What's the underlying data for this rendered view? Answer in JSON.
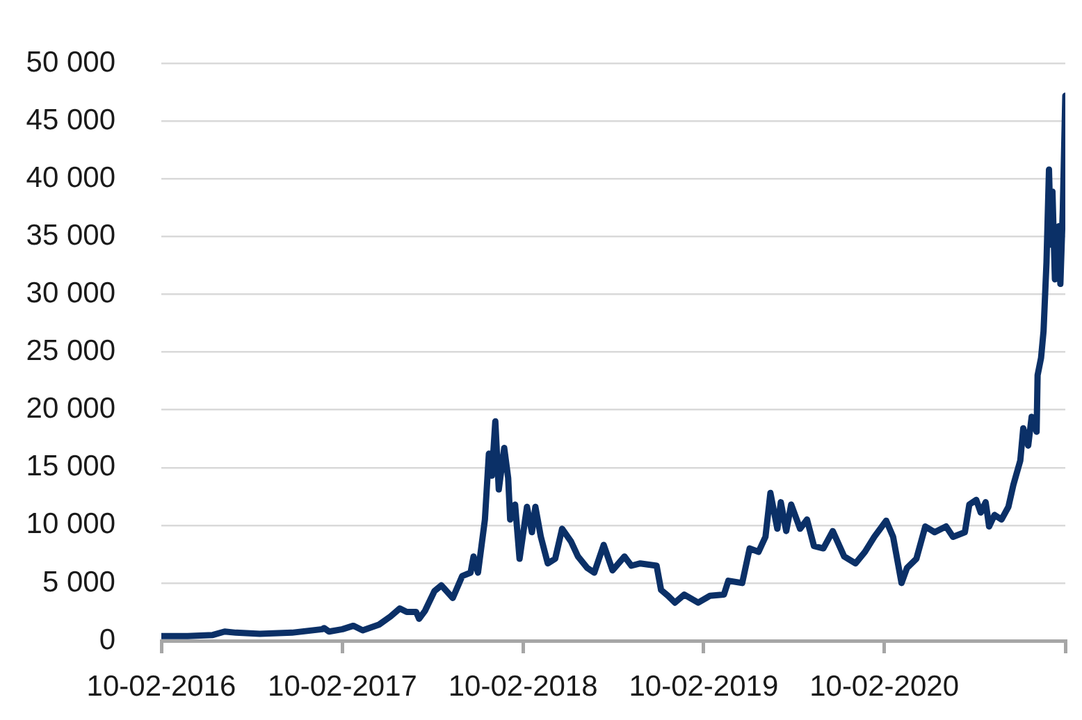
{
  "chart_data": {
    "type": "line",
    "color": "#0b3067",
    "x": [
      "2016-02-10",
      "2016-04-03",
      "2016-05-24",
      "2016-06-17",
      "2016-07-10",
      "2016-08-27",
      "2016-10-31",
      "2016-12-31",
      "2017-01-04",
      "2017-01-14",
      "2017-02-10",
      "2017-03-04",
      "2017-03-23",
      "2017-04-25",
      "2017-05-18",
      "2017-06-06",
      "2017-06-20",
      "2017-07-09",
      "2017-07-15",
      "2017-07-27",
      "2017-08-15",
      "2017-08-29",
      "2017-09-21",
      "2017-10-10",
      "2017-10-27",
      "2017-11-02",
      "2017-11-11",
      "2017-11-25",
      "2017-12-03",
      "2017-12-09",
      "2017-12-16",
      "2017-12-23",
      "2018-01-03",
      "2018-01-11",
      "2018-01-15",
      "2018-01-25",
      "2018-02-03",
      "2018-02-18",
      "2018-02-28",
      "2018-03-07",
      "2018-03-18",
      "2018-04-01",
      "2018-04-16",
      "2018-04-30",
      "2018-05-18",
      "2018-06-01",
      "2018-06-20",
      "2018-07-04",
      "2018-07-23",
      "2018-08-10",
      "2018-09-03",
      "2018-09-17",
      "2018-10-05",
      "2018-11-07",
      "2018-11-16",
      "2018-11-30",
      "2018-12-14",
      "2019-01-02",
      "2019-01-30",
      "2019-02-23",
      "2019-03-23",
      "2019-04-01",
      "2019-04-29",
      "2019-05-14",
      "2019-06-01",
      "2019-06-15",
      "2019-06-25",
      "2019-07-09",
      "2019-07-16",
      "2019-07-27",
      "2019-08-06",
      "2019-08-24",
      "2019-09-07",
      "2019-09-21",
      "2019-10-10",
      "2019-10-29",
      "2019-11-21",
      "2019-12-14",
      "2020-01-02",
      "2020-01-21",
      "2020-02-14",
      "2020-02-28",
      "2020-03-16",
      "2020-03-27",
      "2020-04-15",
      "2020-05-03",
      "2020-05-22",
      "2020-06-14",
      "2020-06-28",
      "2020-07-22",
      "2020-07-31",
      "2020-08-14",
      "2020-08-23",
      "2020-09-02",
      "2020-09-09",
      "2020-09-20",
      "2020-10-04",
      "2020-10-18",
      "2020-10-28",
      "2020-11-11",
      "2020-11-17",
      "2020-11-27",
      "2020-12-04",
      "2020-12-14",
      "2020-12-16",
      "2020-12-23",
      "2020-12-28",
      "2021-01-03",
      "2021-01-08",
      "2021-01-12",
      "2021-01-15",
      "2021-01-20",
      "2021-01-28",
      "2021-01-31",
      "2021-02-05",
      "2021-02-10"
    ],
    "values": [
      400,
      400,
      500,
      800,
      700,
      600,
      700,
      1000,
      1100,
      800,
      1000,
      1300,
      900,
      1400,
      2100,
      2800,
      2500,
      2500,
      1900,
      2600,
      4300,
      4800,
      3700,
      5600,
      5900,
      7300,
      5900,
      10500,
      16200,
      14300,
      19000,
      13100,
      16700,
      14100,
      10500,
      11800,
      7100,
      11600,
      9400,
      11600,
      9000,
      6700,
      7100,
      9700,
      8600,
      7300,
      6300,
      5900,
      8300,
      6100,
      7300,
      6500,
      6700,
      6500,
      4400,
      3900,
      3300,
      4000,
      3300,
      3900,
      4000,
      5200,
      5000,
      8000,
      7700,
      9000,
      12800,
      9700,
      12000,
      9500,
      11800,
      9700,
      10500,
      8200,
      8000,
      9500,
      7300,
      6700,
      7700,
      9000,
      10400,
      9000,
      5000,
      6300,
      7100,
      9900,
      9400,
      9900,
      9000,
      9400,
      11800,
      12200,
      11100,
      12000,
      9900,
      10900,
      10500,
      11600,
      13500,
      15600,
      18400,
      16900,
      19400,
      18100,
      23000,
      24500,
      26800,
      32800,
      40800,
      34300,
      38900,
      31300,
      35900,
      30900,
      37400,
      47200
    ],
    "xlim": [
      "2016-02-10",
      "2021-02-10"
    ],
    "xticks": [
      {
        "value": "2016-02-10",
        "label": "10-02-2016"
      },
      {
        "value": "2017-02-10",
        "label": "10-02-2017"
      },
      {
        "value": "2018-02-10",
        "label": "10-02-2018"
      },
      {
        "value": "2019-02-10",
        "label": "10-02-2019"
      },
      {
        "value": "2020-02-10",
        "label": "10-02-2020"
      },
      {
        "value": "2021-02-10",
        "label": null
      }
    ],
    "ylim": [
      0,
      50000
    ],
    "yticks": [
      0,
      {
        "value": 5000,
        "label": "5 000"
      },
      {
        "value": 10000,
        "label": "10 000"
      },
      {
        "value": 15000,
        "label": "15 000"
      },
      {
        "value": 20000,
        "label": "20 000"
      },
      {
        "value": 25000,
        "label": "25 000"
      },
      {
        "value": 30000,
        "label": "30 000"
      },
      {
        "value": 35000,
        "label": "35 000"
      },
      {
        "value": 40000,
        "label": "40 000"
      },
      {
        "value": 45000,
        "label": "45 000"
      },
      {
        "value": 50000,
        "label": "50 000"
      }
    ],
    "grid": "y"
  }
}
